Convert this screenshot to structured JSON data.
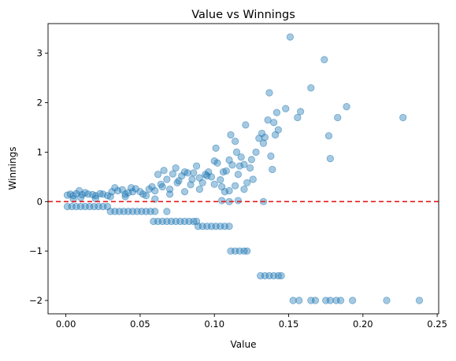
{
  "chart_data": {
    "type": "scatter",
    "title": "Value vs Winnings",
    "xlabel": "Value",
    "ylabel": "Winnings",
    "xlim": [
      -0.012,
      0.251
    ],
    "ylim": [
      -2.27,
      3.6
    ],
    "xticks": [
      0.0,
      0.05,
      0.1,
      0.15,
      0.2,
      0.25
    ],
    "xtick_labels": [
      "0.00",
      "0.05",
      "0.10",
      "0.15",
      "0.20",
      "0.25"
    ],
    "yticks": [
      -2,
      -1,
      0,
      1,
      2,
      3
    ],
    "ytick_labels": [
      "−2",
      "−1",
      "0",
      "1",
      "2",
      "3"
    ],
    "grid": false,
    "point_color": "#1f77b4",
    "point_alpha": 0.4,
    "reference_line": {
      "y": 0,
      "color": "#e41a1c",
      "style": "dashed"
    },
    "series": [
      {
        "points": [
          [
            0.001,
            0.13
          ],
          [
            0.003,
            0.15
          ],
          [
            0.005,
            0.12
          ],
          [
            0.007,
            0.16
          ],
          [
            0.009,
            0.22
          ],
          [
            0.011,
            0.14
          ],
          [
            0.013,
            0.18
          ],
          [
            0.015,
            0.15
          ],
          [
            0.018,
            0.14
          ],
          [
            0.02,
            0.12
          ],
          [
            0.023,
            0.16
          ],
          [
            0.025,
            0.15
          ],
          [
            0.028,
            0.12
          ],
          [
            0.031,
            0.2
          ],
          [
            0.033,
            0.28
          ],
          [
            0.035,
            0.22
          ],
          [
            0.038,
            0.24
          ],
          [
            0.04,
            0.15
          ],
          [
            0.042,
            0.18
          ],
          [
            0.045,
            0.2
          ],
          [
            0.047,
            0.26
          ],
          [
            0.05,
            0.2
          ],
          [
            0.052,
            0.15
          ],
          [
            0.054,
            0.12
          ],
          [
            0.056,
            0.25
          ],
          [
            0.058,
            0.3
          ],
          [
            0.06,
            0.22
          ],
          [
            0.062,
            0.55
          ],
          [
            0.064,
            0.35
          ],
          [
            0.066,
            0.63
          ],
          [
            0.068,
            0.45
          ],
          [
            0.07,
            0.25
          ],
          [
            0.072,
            0.56
          ],
          [
            0.074,
            0.68
          ],
          [
            0.076,
            0.42
          ],
          [
            0.078,
            0.52
          ],
          [
            0.08,
            0.6
          ],
          [
            0.082,
            0.58
          ],
          [
            0.084,
            0.34
          ],
          [
            0.086,
            0.58
          ],
          [
            0.088,
            0.72
          ],
          [
            0.09,
            0.48
          ],
          [
            0.092,
            0.38
          ],
          [
            0.094,
            0.55
          ],
          [
            0.096,
            0.6
          ],
          [
            0.098,
            0.5
          ],
          [
            0.1,
            0.82
          ],
          [
            0.101,
            1.08
          ],
          [
            0.102,
            0.78
          ],
          [
            0.104,
            0.44
          ],
          [
            0.106,
            0.6
          ],
          [
            0.108,
            0.62
          ],
          [
            0.11,
            0.84
          ],
          [
            0.111,
            1.35
          ],
          [
            0.112,
            0.74
          ],
          [
            0.114,
            1.22
          ],
          [
            0.115,
            1.0
          ],
          [
            0.117,
            0.72
          ],
          [
            0.118,
            0.9
          ],
          [
            0.12,
            0.75
          ],
          [
            0.121,
            1.55
          ],
          [
            0.122,
            0.38
          ],
          [
            0.124,
            0.68
          ],
          [
            0.126,
            0.45
          ],
          [
            0.128,
            1.0
          ],
          [
            0.13,
            1.28
          ],
          [
            0.132,
            1.38
          ],
          [
            0.134,
            1.3
          ],
          [
            0.136,
            1.65
          ],
          [
            0.137,
            2.2
          ],
          [
            0.138,
            0.92
          ],
          [
            0.139,
            0.65
          ],
          [
            0.14,
            1.6
          ],
          [
            0.141,
            1.35
          ],
          [
            0.142,
            1.8
          ],
          [
            0.143,
            1.45
          ],
          [
            0.148,
            1.88
          ],
          [
            0.151,
            3.33
          ],
          [
            0.156,
            1.7
          ],
          [
            0.158,
            1.82
          ],
          [
            0.165,
            2.3
          ],
          [
            0.174,
            2.87
          ],
          [
            0.177,
            1.33
          ],
          [
            0.178,
            0.87
          ],
          [
            0.183,
            1.7
          ],
          [
            0.189,
            1.92
          ],
          [
            0.227,
            1.7
          ],
          [
            0.005,
            0.05
          ],
          [
            0.01,
            0.08
          ],
          [
            0.02,
            0.06
          ],
          [
            0.03,
            0.1
          ],
          [
            0.04,
            0.1
          ],
          [
            0.06,
            0.05
          ],
          [
            0.07,
            0.15
          ],
          [
            0.08,
            0.2
          ],
          [
            0.09,
            0.25
          ],
          [
            0.1,
            0.35
          ],
          [
            0.107,
            0.2
          ],
          [
            0.11,
            0.22
          ],
          [
            0.114,
            0.32
          ],
          [
            0.12,
            0.25
          ],
          [
            0.044,
            0.28
          ],
          [
            0.065,
            0.3
          ],
          [
            0.075,
            0.38
          ],
          [
            0.085,
            0.45
          ],
          [
            0.095,
            0.52
          ],
          [
            0.105,
            0.3
          ],
          [
            0.116,
            0.55
          ],
          [
            0.125,
            0.85
          ],
          [
            0.133,
            1.18
          ],
          [
            0.105,
            0.02
          ],
          [
            0.11,
            0.0
          ],
          [
            0.116,
            0.02
          ],
          [
            0.133,
            0.0
          ],
          [
            0.001,
            -0.1
          ],
          [
            0.004,
            -0.1
          ],
          [
            0.007,
            -0.1
          ],
          [
            0.01,
            -0.1
          ],
          [
            0.013,
            -0.1
          ],
          [
            0.016,
            -0.1
          ],
          [
            0.019,
            -0.1
          ],
          [
            0.022,
            -0.1
          ],
          [
            0.025,
            -0.1
          ],
          [
            0.028,
            -0.1
          ],
          [
            0.03,
            -0.2
          ],
          [
            0.033,
            -0.2
          ],
          [
            0.036,
            -0.2
          ],
          [
            0.039,
            -0.2
          ],
          [
            0.042,
            -0.2
          ],
          [
            0.045,
            -0.2
          ],
          [
            0.048,
            -0.2
          ],
          [
            0.051,
            -0.2
          ],
          [
            0.054,
            -0.2
          ],
          [
            0.057,
            -0.2
          ],
          [
            0.06,
            -0.2
          ],
          [
            0.068,
            -0.2
          ],
          [
            0.059,
            -0.4
          ],
          [
            0.062,
            -0.4
          ],
          [
            0.065,
            -0.4
          ],
          [
            0.068,
            -0.4
          ],
          [
            0.071,
            -0.4
          ],
          [
            0.074,
            -0.4
          ],
          [
            0.077,
            -0.4
          ],
          [
            0.08,
            -0.4
          ],
          [
            0.083,
            -0.4
          ],
          [
            0.086,
            -0.4
          ],
          [
            0.088,
            -0.4
          ],
          [
            0.089,
            -0.5
          ],
          [
            0.092,
            -0.5
          ],
          [
            0.095,
            -0.5
          ],
          [
            0.098,
            -0.5
          ],
          [
            0.101,
            -0.5
          ],
          [
            0.104,
            -0.5
          ],
          [
            0.107,
            -0.5
          ],
          [
            0.11,
            -0.5
          ],
          [
            0.111,
            -1.0
          ],
          [
            0.114,
            -1.0
          ],
          [
            0.117,
            -1.0
          ],
          [
            0.12,
            -1.0
          ],
          [
            0.122,
            -1.0
          ],
          [
            0.131,
            -1.5
          ],
          [
            0.134,
            -1.5
          ],
          [
            0.137,
            -1.5
          ],
          [
            0.14,
            -1.5
          ],
          [
            0.143,
            -1.5
          ],
          [
            0.145,
            -1.5
          ],
          [
            0.153,
            -2.0
          ],
          [
            0.157,
            -2.0
          ],
          [
            0.165,
            -2.0
          ],
          [
            0.168,
            -2.0
          ],
          [
            0.175,
            -2.0
          ],
          [
            0.178,
            -2.0
          ],
          [
            0.182,
            -2.0
          ],
          [
            0.185,
            -2.0
          ],
          [
            0.193,
            -2.0
          ],
          [
            0.216,
            -2.0
          ],
          [
            0.238,
            -2.0
          ]
        ]
      }
    ]
  }
}
